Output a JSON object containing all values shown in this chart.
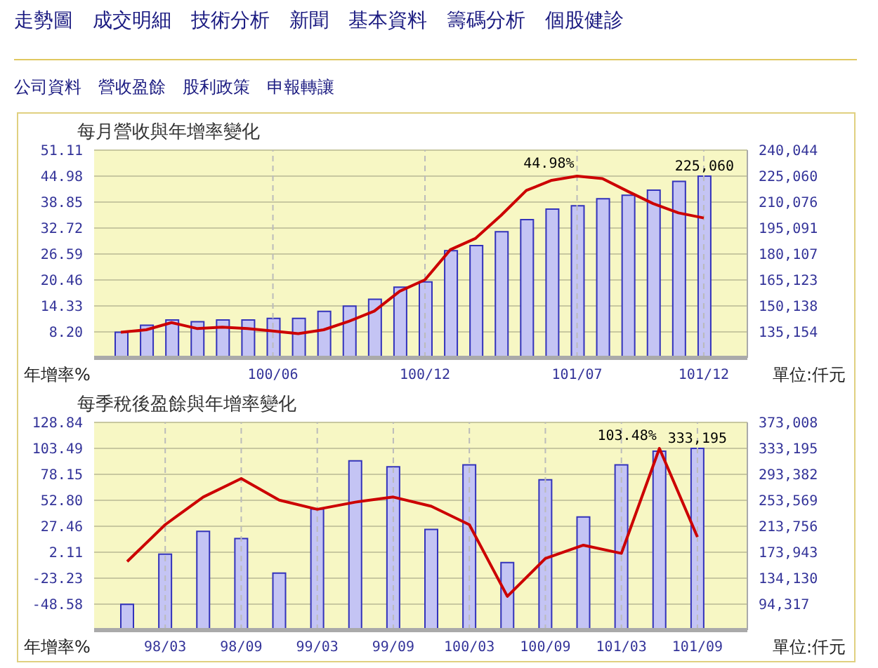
{
  "chart_data": [
    {
      "type": "bar",
      "title": "每月營收與年增率變化",
      "ylabel": "年增率%",
      "y2label": "單位:仟元",
      "annotations": [
        "走勢圖　成交明細　技術分析　新聞　基本資料　籌碼分析　個股健診",
        "公司資料　營收盈餘　股利政策　申報轉讓"
      ],
      "categories": [
        null,
        null,
        null,
        null,
        null,
        null,
        "100/06",
        null,
        null,
        null,
        null,
        null,
        "100/12",
        null,
        null,
        null,
        null,
        null,
        "101/07",
        null,
        null,
        null,
        null,
        "101/12"
      ],
      "series": [
        {
          "axis": "y2",
          "color": "#c4c4f4",
          "values": [
            135000,
            139000,
            142000,
            141000,
            142000,
            142000,
            143000,
            143000,
            147000,
            150000,
            154000,
            161000,
            164000,
            182000,
            185000,
            193000,
            200000,
            206000,
            208000,
            212000,
            214000,
            217000,
            222000,
            225060
          ],
          "value_labels": [
            null,
            null,
            null,
            null,
            null,
            null,
            null,
            null,
            null,
            null,
            null,
            null,
            null,
            null,
            null,
            null,
            null,
            null,
            null,
            null,
            null,
            null,
            null,
            "225,060"
          ]
        },
        {
          "type": "line",
          "color": "#cc0000",
          "values": [
            8.1,
            8.7,
            10.4,
            9.0,
            9.3,
            9.0,
            8.4,
            7.8,
            8.7,
            10.7,
            13.1,
            17.8,
            20.5,
            27.6,
            30.3,
            35.7,
            41.6,
            44.0,
            44.98,
            44.4,
            41.4,
            38.5,
            36.3,
            35.1
          ],
          "value_labels": [
            null,
            null,
            null,
            null,
            null,
            null,
            null,
            null,
            null,
            null,
            null,
            null,
            null,
            null,
            null,
            null,
            null,
            null,
            "44.98%",
            null,
            null,
            null,
            null,
            null
          ]
        }
      ],
      "ylim": [
        2.07,
        51.11
      ],
      "yticks": [
        {
          "value": 8.2,
          "label": "8.20"
        },
        {
          "value": 14.33,
          "label": "14.33"
        },
        {
          "value": 20.46,
          "label": "20.46"
        },
        {
          "value": 26.59,
          "label": "26.59"
        },
        {
          "value": 32.72,
          "label": "32.72"
        },
        {
          "value": 38.85,
          "label": "38.85"
        },
        {
          "value": 44.98,
          "label": "44.98"
        },
        {
          "value": 51.11,
          "label": "51.11"
        }
      ],
      "y2lim": [
        120170,
        240044
      ],
      "y2ticks": [
        {
          "value": 135154,
          "label": "135,154"
        },
        {
          "value": 150138,
          "label": "150,138"
        },
        {
          "value": 165123,
          "label": "165,123"
        },
        {
          "value": 180107,
          "label": "180,107"
        },
        {
          "value": 195091,
          "label": "195,091"
        },
        {
          "value": 210076,
          "label": "210,076"
        },
        {
          "value": 225060,
          "label": "225,060"
        },
        {
          "value": 240044,
          "label": "240,044"
        }
      ],
      "grid": true,
      "marker": "none",
      "legend": false
    },
    {
      "type": "bar",
      "title": "每季稅後盈餘與年增率變化",
      "ylabel": "年增率%",
      "y2label": "單位:仟元",
      "categories": [
        null,
        "98/03",
        null,
        "98/09",
        null,
        "99/03",
        null,
        "99/09",
        null,
        "100/03",
        null,
        "100/09",
        null,
        "101/03",
        null,
        "101/09"
      ],
      "series": [
        {
          "axis": "y2",
          "color": "#c4c4f4",
          "values": [
            94000,
            171000,
            206000,
            195000,
            142000,
            240000,
            314000,
            305000,
            209000,
            308000,
            158000,
            285000,
            228000,
            308000,
            329000,
            333195
          ],
          "value_labels": [
            null,
            null,
            null,
            null,
            null,
            null,
            null,
            null,
            null,
            null,
            null,
            null,
            null,
            null,
            null,
            "333,195"
          ]
        },
        {
          "type": "line",
          "color": "#cc0000",
          "values": [
            -7,
            29,
            56,
            74,
            53,
            44,
            51,
            56,
            47,
            29,
            -41,
            -4,
            9,
            1,
            103.48,
            17
          ],
          "value_labels": [
            null,
            null,
            null,
            null,
            null,
            null,
            null,
            null,
            null,
            null,
            null,
            null,
            null,
            null,
            "103.48%",
            null
          ]
        }
      ],
      "ylim": [
        -73.93,
        128.84
      ],
      "yticks": [
        {
          "value": -48.58,
          "label": "-48.58"
        },
        {
          "value": -23.23,
          "label": "-23.23"
        },
        {
          "value": 2.11,
          "label": "2.11"
        },
        {
          "value": 27.46,
          "label": "27.46"
        },
        {
          "value": 52.8,
          "label": "52.80"
        },
        {
          "value": 78.15,
          "label": "78.15"
        },
        {
          "value": 103.49,
          "label": "103.49"
        },
        {
          "value": 128.84,
          "label": "128.84"
        }
      ],
      "y2lim": [
        54504,
        373008
      ],
      "y2ticks": [
        {
          "value": 94317,
          "label": "94,317"
        },
        {
          "value": 134130,
          "label": "134,130"
        },
        {
          "value": 173943,
          "label": "173,943"
        },
        {
          "value": 213756,
          "label": "213,756"
        },
        {
          "value": 253569,
          "label": "253,569"
        },
        {
          "value": 293382,
          "label": "293,382"
        },
        {
          "value": 333195,
          "label": "333,195"
        },
        {
          "value": 373008,
          "label": "373,008"
        }
      ],
      "grid": true,
      "marker": "none",
      "legend": false
    }
  ]
}
